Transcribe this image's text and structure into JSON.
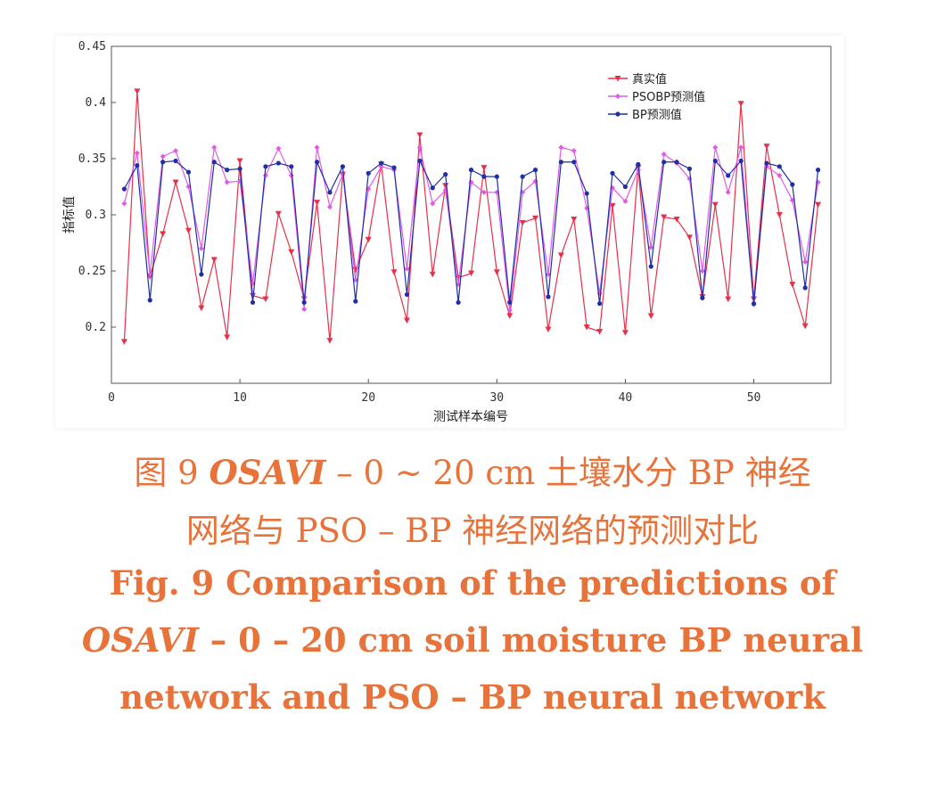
{
  "caption": {
    "cn_line1_prefix": "图 9  ",
    "cn_line1_italic": "OSAVI",
    "cn_line1_rest": " – 0 ~ 20 cm 土壤水分 BP 神经",
    "cn_line2": "网络与 PSO – BP 神经网络的预测对比",
    "en_line1": "Fig. 9   Comparison of the predictions of",
    "en_line2_italic": "OSAVI",
    "en_line2_rest": " – 0 – 20 cm soil moisture BP neural",
    "en_line3": "network and PSO – BP neural network"
  },
  "colors": {
    "true": "#e8304a",
    "pso": "#e05ae6",
    "bp": "#1f2fa6",
    "caption": "#e8733a"
  },
  "chart_data": {
    "type": "line",
    "xlabel": "测试样本编号",
    "ylabel": "指标值",
    "xlim": [
      0,
      56
    ],
    "ylim": [
      0.15,
      0.45
    ],
    "xticks": [
      0,
      10,
      20,
      30,
      40,
      50
    ],
    "yticks": [
      0.2,
      0.25,
      0.3,
      0.35,
      0.4,
      0.45
    ],
    "ytick_labels": [
      "0.2",
      "0.25",
      "0.3",
      "0.35",
      "0.4",
      "0.45"
    ],
    "legend_position": "top-right",
    "grid": false,
    "x": [
      1,
      2,
      3,
      4,
      5,
      6,
      7,
      8,
      9,
      10,
      11,
      12,
      13,
      14,
      15,
      16,
      17,
      18,
      19,
      20,
      21,
      22,
      23,
      24,
      25,
      26,
      27,
      28,
      29,
      30,
      31,
      32,
      33,
      34,
      35,
      36,
      37,
      38,
      39,
      40,
      41,
      42,
      43,
      44,
      45,
      46,
      47,
      48,
      49,
      50,
      51,
      52,
      53,
      54,
      55
    ],
    "series": [
      {
        "name": "真实值",
        "color_key": "true",
        "marker": "triangle-down",
        "values": [
          0.187,
          0.41,
          0.245,
          0.283,
          0.329,
          0.286,
          0.217,
          0.26,
          0.191,
          0.348,
          0.228,
          0.225,
          0.301,
          0.267,
          0.225,
          0.311,
          0.188,
          0.336,
          0.251,
          0.278,
          0.345,
          0.249,
          0.206,
          0.371,
          0.247,
          0.326,
          0.244,
          0.248,
          0.342,
          0.249,
          0.21,
          0.293,
          0.297,
          0.198,
          0.264,
          0.296,
          0.2,
          0.196,
          0.308,
          0.195,
          0.342,
          0.21,
          0.298,
          0.296,
          0.28,
          0.227,
          0.309,
          0.225,
          0.399,
          0.225,
          0.361,
          0.3,
          0.238,
          0.201,
          0.309
        ]
      },
      {
        "name": "PSOBP预测值",
        "color_key": "pso",
        "marker": "diamond",
        "values": [
          0.31,
          0.355,
          0.247,
          0.352,
          0.357,
          0.325,
          0.27,
          0.36,
          0.329,
          0.33,
          0.239,
          0.335,
          0.359,
          0.335,
          0.216,
          0.36,
          0.307,
          0.336,
          0.242,
          0.323,
          0.343,
          0.34,
          0.252,
          0.36,
          0.31,
          0.322,
          0.238,
          0.329,
          0.32,
          0.32,
          0.215,
          0.32,
          0.33,
          0.247,
          0.36,
          0.357,
          0.306,
          0.23,
          0.324,
          0.312,
          0.34,
          0.271,
          0.354,
          0.346,
          0.332,
          0.25,
          0.36,
          0.32,
          0.36,
          0.22,
          0.343,
          0.335,
          0.313,
          0.258,
          0.329
        ]
      },
      {
        "name": "BP预测值",
        "color_key": "bp",
        "marker": "dot",
        "values": [
          0.323,
          0.344,
          0.224,
          0.347,
          0.348,
          0.338,
          0.247,
          0.347,
          0.34,
          0.341,
          0.222,
          0.343,
          0.346,
          0.343,
          0.222,
          0.347,
          0.32,
          0.343,
          0.223,
          0.337,
          0.346,
          0.342,
          0.229,
          0.348,
          0.324,
          0.336,
          0.222,
          0.34,
          0.334,
          0.334,
          0.222,
          0.334,
          0.34,
          0.227,
          0.347,
          0.347,
          0.319,
          0.221,
          0.337,
          0.325,
          0.345,
          0.254,
          0.347,
          0.347,
          0.341,
          0.226,
          0.348,
          0.335,
          0.348,
          0.221,
          0.346,
          0.343,
          0.327,
          0.235,
          0.34
        ]
      }
    ]
  }
}
